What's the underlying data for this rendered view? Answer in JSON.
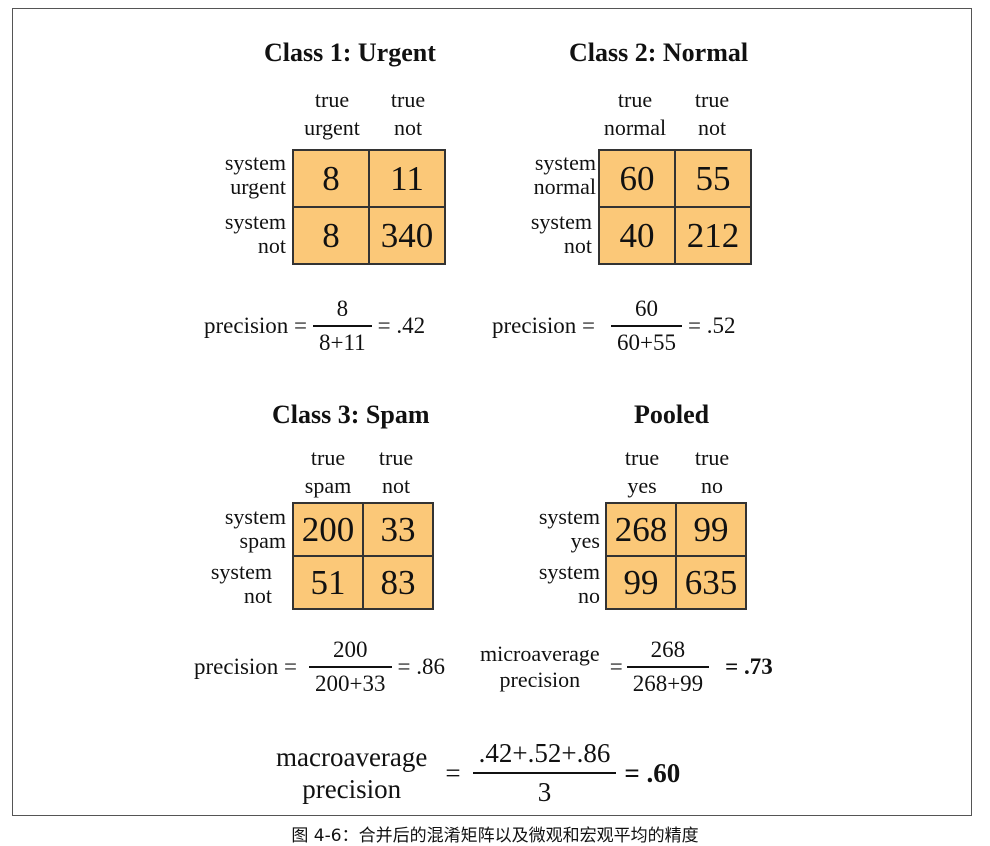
{
  "classes": [
    {
      "title": "Class 1: Urgent",
      "col_headers": [
        [
          "true",
          "urgent"
        ],
        [
          "true",
          "not"
        ]
      ],
      "row_headers": [
        [
          "system",
          "urgent"
        ],
        [
          "system",
          "not"
        ]
      ],
      "cells": [
        [
          "8",
          "11"
        ],
        [
          "8",
          "340"
        ]
      ],
      "eq": {
        "lhs": "precision =",
        "num": "8",
        "den": "8+11",
        "rhs": "= .42"
      }
    },
    {
      "title": "Class 2: Normal",
      "col_headers": [
        [
          "true",
          "normal"
        ],
        [
          "true",
          "not"
        ]
      ],
      "row_headers": [
        [
          "system",
          "normal"
        ],
        [
          "system",
          "not"
        ]
      ],
      "cells": [
        [
          "60",
          "55"
        ],
        [
          "40",
          "212"
        ]
      ],
      "eq": {
        "lhs": "precision =",
        "num": "60",
        "den": "60+55",
        "rhs": "= .52"
      }
    },
    {
      "title": "Class 3: Spam",
      "col_headers": [
        [
          "true",
          "spam"
        ],
        [
          "true",
          "not"
        ]
      ],
      "row_headers": [
        [
          "system",
          "spam"
        ],
        [
          "system",
          "not"
        ]
      ],
      "cells": [
        [
          "200",
          "33"
        ],
        [
          "51",
          "83"
        ]
      ],
      "eq": {
        "lhs": "precision =",
        "num": "200",
        "den": "200+33",
        "rhs": "= .86"
      }
    },
    {
      "title": "Pooled",
      "col_headers": [
        [
          "true",
          "yes"
        ],
        [
          "true",
          "no"
        ]
      ],
      "row_headers": [
        [
          "system",
          "yes"
        ],
        [
          "system",
          "no"
        ]
      ],
      "cells": [
        [
          "268",
          "99"
        ],
        [
          "99",
          "635"
        ]
      ],
      "eq": {
        "lhs1": "microaverage",
        "lhs2": "precision",
        "eqsign": "=",
        "num": "268",
        "den": "268+99",
        "rhs": "= .73"
      }
    }
  ],
  "macro": {
    "lhs1": "macroaverage",
    "lhs2": "precision",
    "eqsign": "=",
    "num": ".42+.52+.86",
    "den": "3",
    "rhs": "= .60"
  },
  "caption": "图 4-6：合并后的混淆矩阵以及微观和宏观平均的精度"
}
